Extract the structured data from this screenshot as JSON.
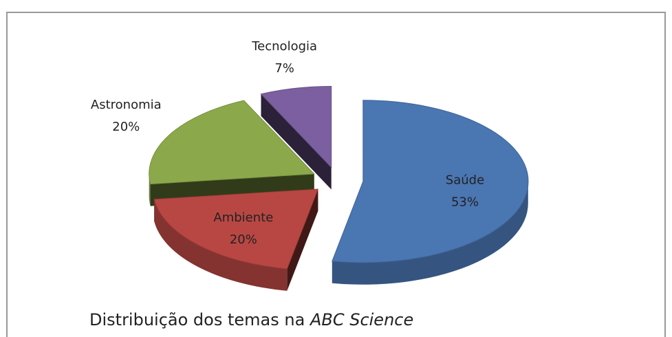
{
  "chart_data": {
    "type": "pie",
    "title": "Distribuição dos temas na",
    "title_emphasis": "ABC Science",
    "categories": [
      "Saúde",
      "Ambiente",
      "Astronomia",
      "Tecnologia"
    ],
    "values": [
      53,
      20,
      20,
      7
    ],
    "value_labels": [
      "53%",
      "20%",
      "20%",
      "7%"
    ],
    "colors": [
      "#4a76b2",
      "#b84743",
      "#8ba94b",
      "#7c5fa0"
    ]
  }
}
